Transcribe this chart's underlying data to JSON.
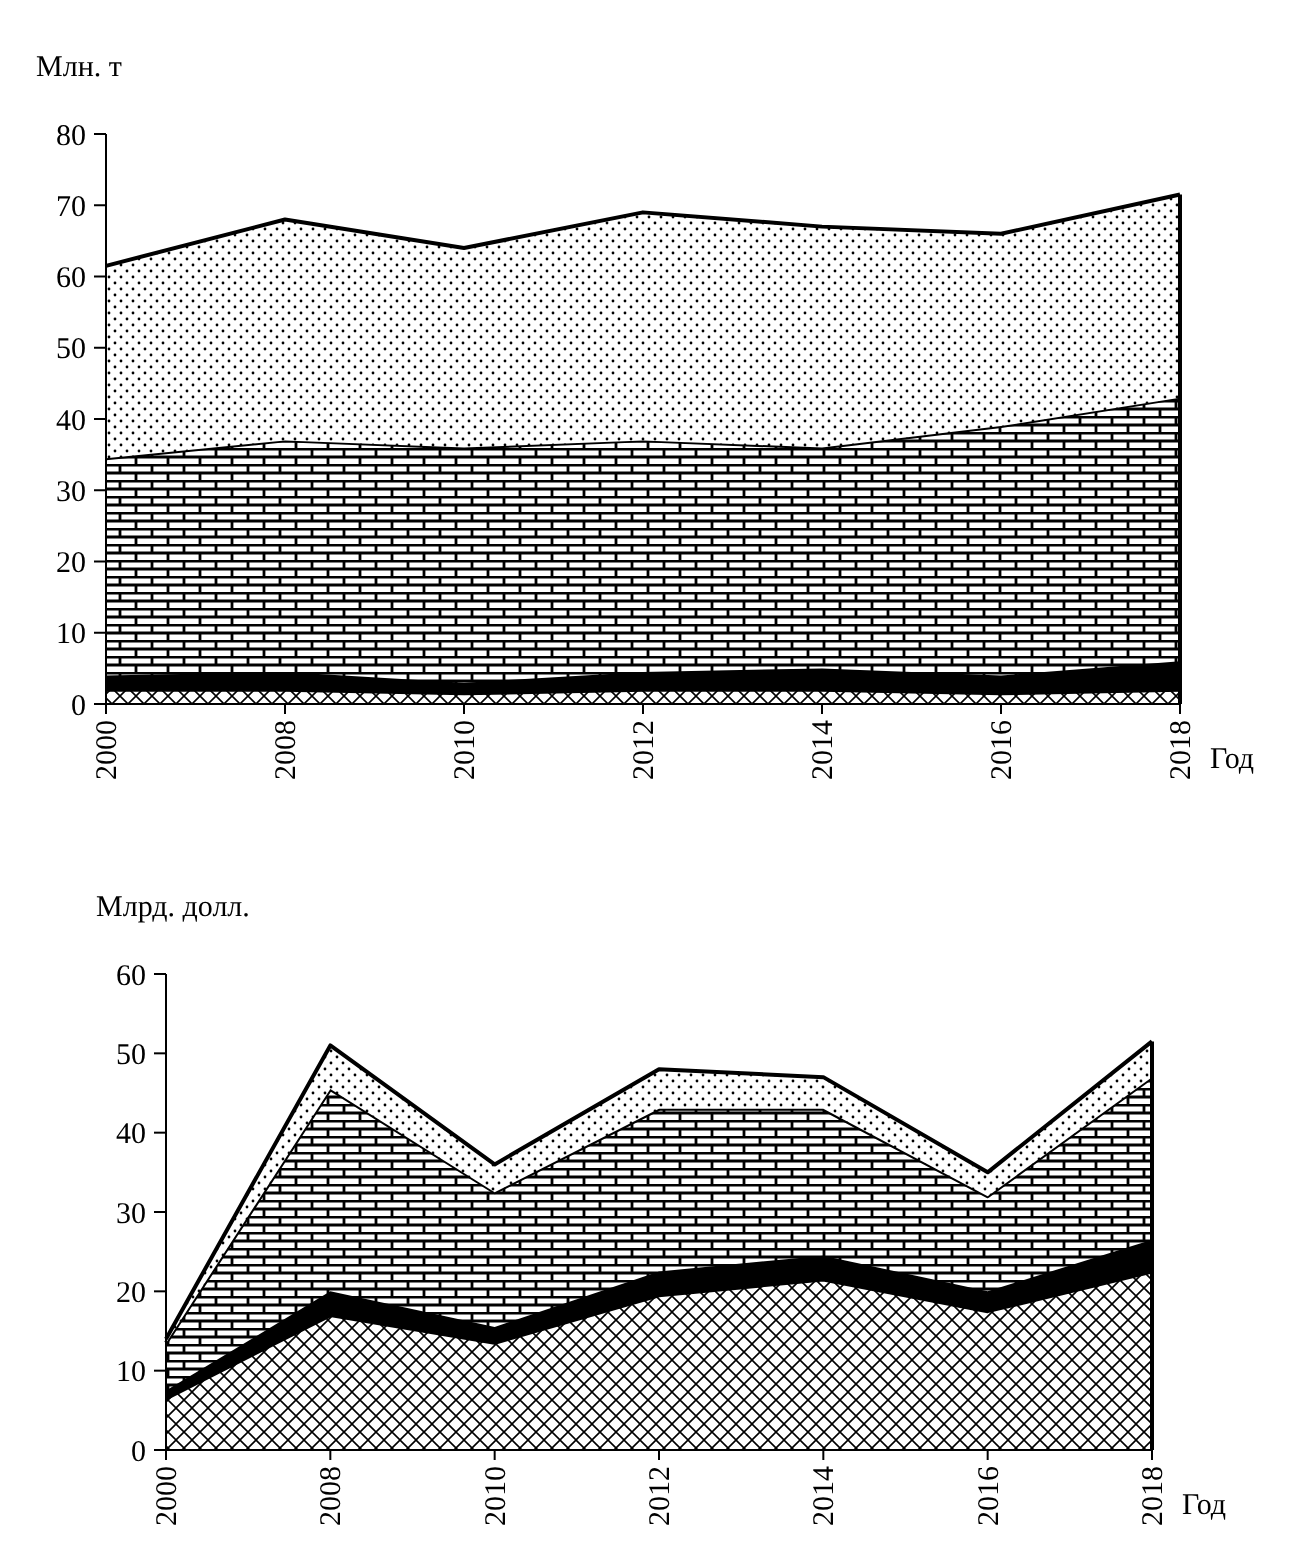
{
  "chart_data": [
    {
      "type": "area",
      "stacked": true,
      "ylabel": "Млн. т",
      "xlabel": "Год",
      "categories": [
        "2000",
        "2008",
        "2010",
        "2012",
        "2014",
        "2016",
        "2018"
      ],
      "ylim": [
        0,
        80
      ],
      "yticks": [
        0,
        10,
        20,
        30,
        40,
        50,
        60,
        70,
        80
      ],
      "series": [
        {
          "color": "#000000",
          "values": [
            2,
            2,
            1.5,
            2,
            2,
            1.5,
            2
          ]
        },
        {
          "color": "#000000",
          "values": [
            2,
            2.5,
            1.5,
            2.5,
            3,
            2.5,
            4
          ]
        },
        {
          "color": "#000000",
          "values": [
            30.5,
            32.5,
            33,
            32.5,
            31,
            35,
            37
          ]
        },
        {
          "color": "#000000",
          "values": [
            27,
            31,
            28,
            32,
            31,
            27,
            28.5
          ]
        }
      ]
    },
    {
      "type": "area",
      "stacked": true,
      "ylabel": "Млрд.  долл.",
      "xlabel": "Год",
      "categories": [
        "2000",
        "2008",
        "2010",
        "2012",
        "2014",
        "2016",
        "2018"
      ],
      "ylim": [
        0,
        60
      ],
      "yticks": [
        0,
        10,
        20,
        30,
        40,
        50,
        60
      ],
      "series": [
        {
          "color": "#000000",
          "values": [
            6.5,
            17,
            13.5,
            19.5,
            21.5,
            17.5,
            22.5
          ]
        },
        {
          "color": "#000000",
          "values": [
            1,
            3,
            2,
            3,
            3,
            2.5,
            4
          ]
        },
        {
          "color": "#000000",
          "values": [
            6,
            25.5,
            17,
            20.5,
            18.5,
            12,
            20.5
          ]
        },
        {
          "color": "#000000",
          "values": [
            0.5,
            5.5,
            3.5,
            5,
            4,
            3,
            4.5
          ]
        }
      ]
    }
  ]
}
